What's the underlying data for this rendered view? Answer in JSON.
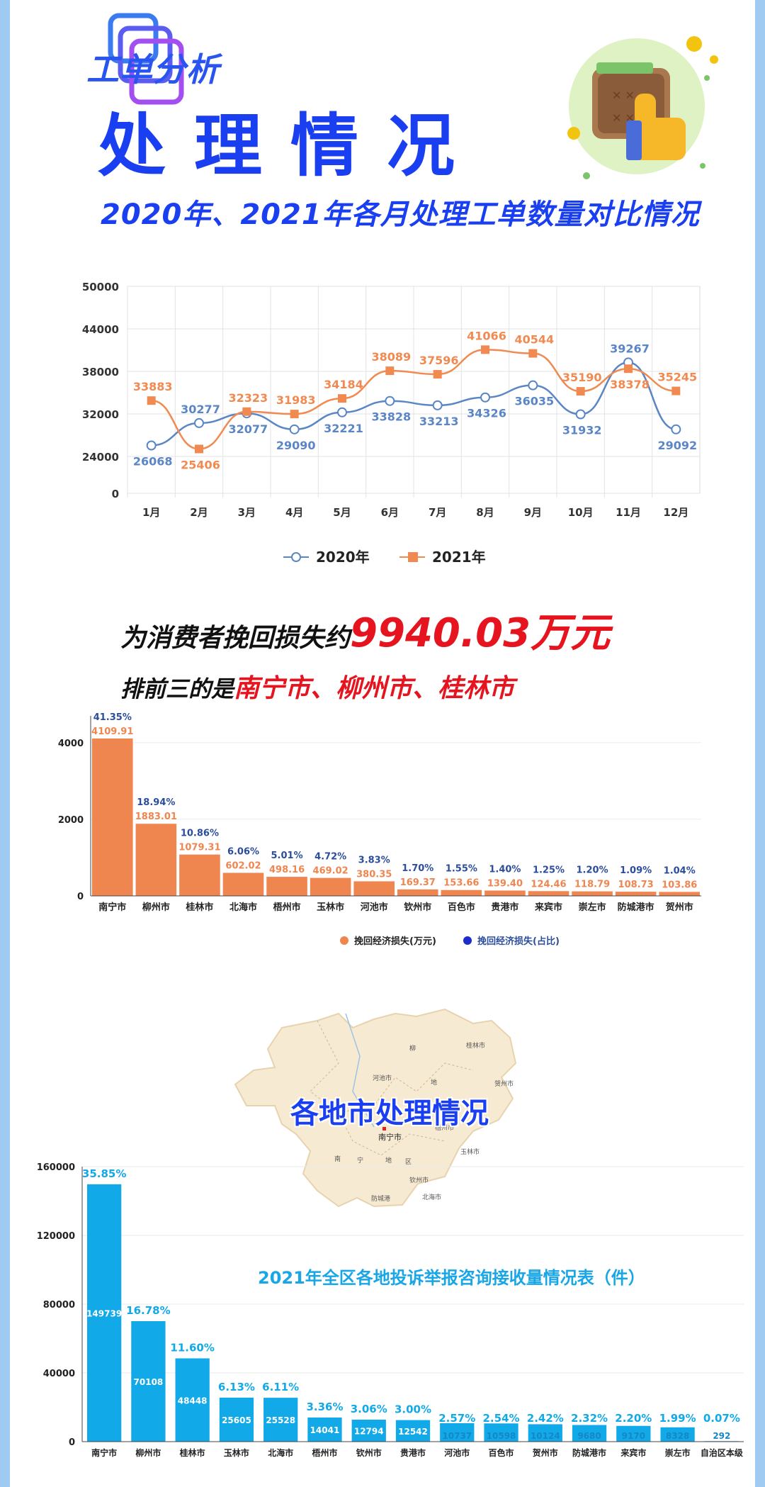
{
  "badge": "工单分析",
  "title": "处理情况",
  "subtitle": "2020年、2021年各月处理工单数量对比情况",
  "colors": {
    "blue_title": "#1a3ff0",
    "series_2020": "#5b86c6",
    "series_2021": "#f08a50",
    "bar_orange": "#ef8650",
    "bar_cyan": "#12a9e8",
    "red": "#e5141e"
  },
  "headline_savings": {
    "prefix": "为消费者挽回损失约",
    "value": "9940.03万元"
  },
  "headline_top3": {
    "prefix": "排前三的是",
    "value": "南宁市、柳州市、桂林市"
  },
  "map_caption": "各地市处理情况",
  "map_labels": [
    "柳",
    "河池市",
    "桂林市",
    "地",
    "贺州市",
    "南宁市",
    "梧州市",
    "玉林市",
    "南",
    "宁",
    "地",
    "区",
    "钦州市",
    "北海市",
    "防城港"
  ],
  "chart_data": [
    {
      "type": "line",
      "title": "",
      "categories": [
        "1月",
        "2月",
        "3月",
        "4月",
        "5月",
        "6月",
        "7月",
        "8月",
        "9月",
        "10月",
        "11月",
        "12月"
      ],
      "yticks": [
        "50000",
        "44000",
        "38000",
        "32000",
        "24000",
        "0"
      ],
      "series": [
        {
          "name": "2020年",
          "values": [
            26068,
            30277,
            32077,
            29090,
            32221,
            33828,
            33213,
            34326,
            36035,
            31932,
            39267,
            29092
          ]
        },
        {
          "name": "2021年",
          "values": [
            33883,
            25406,
            32323,
            31983,
            34184,
            38089,
            37596,
            41066,
            40544,
            35190,
            38378,
            35245
          ]
        }
      ],
      "legend_position": "bottom",
      "grid": true
    },
    {
      "type": "bar",
      "categories": [
        "南宁市",
        "柳州市",
        "桂林市",
        "北海市",
        "梧州市",
        "玉林市",
        "河池市",
        "钦州市",
        "百色市",
        "贵港市",
        "来宾市",
        "崇左市",
        "防城港市",
        "贺州市"
      ],
      "series": [
        {
          "name": "挽回经济损失(万元)",
          "values": [
            4109.91,
            1883.01,
            1079.31,
            602.02,
            498.16,
            469.02,
            380.35,
            169.37,
            153.66,
            139.4,
            124.46,
            118.79,
            108.73,
            103.86
          ],
          "labels": [
            "4109.91",
            "1883.01",
            "1079.31",
            "602.02",
            "498.16",
            "469.02",
            "380.35",
            "169.37",
            "153.66",
            "139.40",
            "124.46",
            "118.79",
            "108.73",
            "103.86"
          ]
        },
        {
          "name": "挽回经济损失(占比)",
          "values": [
            "41.35%",
            "18.94%",
            "10.86%",
            "6.06%",
            "5.01%",
            "4.72%",
            "3.83%",
            "1.70%",
            "1.55%",
            "1.40%",
            "1.25%",
            "1.20%",
            "1.09%",
            "1.04%"
          ]
        }
      ],
      "yticks": [
        "4000",
        "2000",
        "0"
      ],
      "ylim": [
        0,
        4700
      ],
      "legend_position": "bottom",
      "grid": true
    },
    {
      "type": "bar",
      "title": "2021年全区各地投诉举报咨询接收量情况表（件）",
      "categories": [
        "南宁市",
        "柳州市",
        "桂林市",
        "玉林市",
        "北海市",
        "梧州市",
        "钦州市",
        "贵港市",
        "河池市",
        "百色市",
        "贺州市",
        "防城港市",
        "来宾市",
        "崇左市",
        "自治区本级"
      ],
      "values": [
        149739,
        70108,
        48448,
        25605,
        25528,
        14041,
        12794,
        12542,
        10737,
        10598,
        10124,
        9680,
        9170,
        8328,
        292
      ],
      "value_labels": [
        "149739",
        "70108",
        "48448",
        "25605",
        "25528",
        "14041",
        "12794",
        "12542",
        "10737",
        "10598",
        "10124",
        "9680",
        "9170",
        "8328",
        "292"
      ],
      "percent_labels": [
        "35.85%",
        "16.78%",
        "11.60%",
        "6.13%",
        "6.11%",
        "3.36%",
        "3.06%",
        "3.00%",
        "2.57%",
        "2.54%",
        "2.42%",
        "2.32%",
        "2.20%",
        "1.99%",
        "0.07%"
      ],
      "yticks": [
        "160000",
        "120000",
        "80000",
        "40000",
        "0"
      ],
      "ylim": [
        0,
        160000
      ],
      "grid": true
    }
  ]
}
